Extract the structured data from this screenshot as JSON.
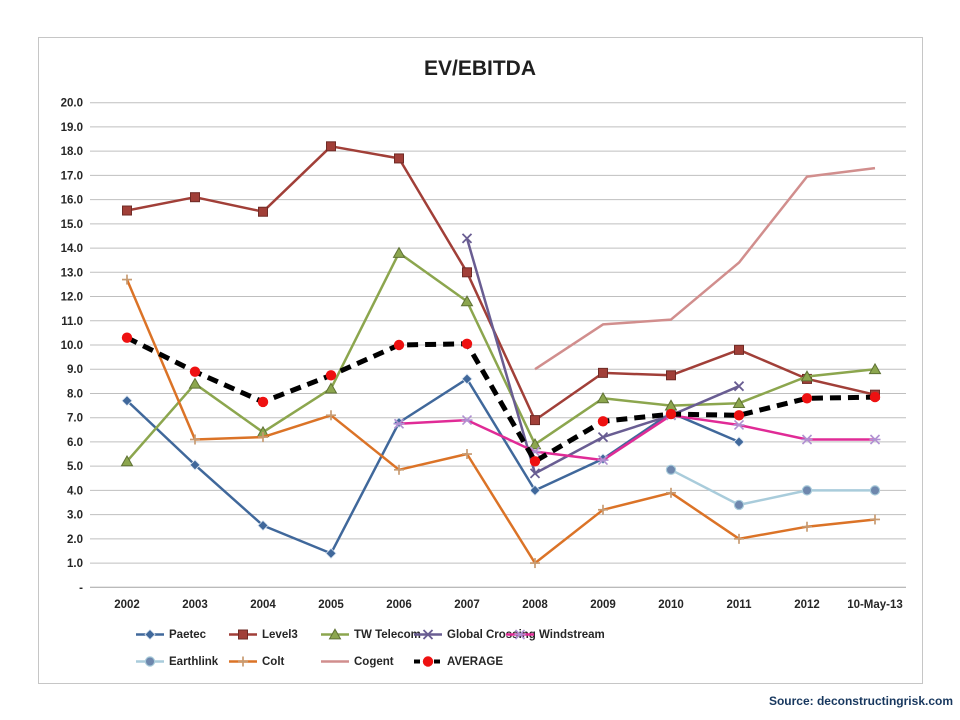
{
  "title": "EV/EBITDA",
  "source": "Source: deconstructingrisk.com",
  "chart_data": {
    "type": "line",
    "title": "EV/EBITDA",
    "xlabel": "",
    "ylabel": "",
    "ylim": [
      0,
      20
    ],
    "grid": true,
    "legend_position": "bottom",
    "categories": [
      "2002",
      "2003",
      "2004",
      "2005",
      "2006",
      "2007",
      "2008",
      "2009",
      "2010",
      "2011",
      "2012",
      "10-May-13"
    ],
    "ytick_labels": [
      "20.0",
      "19.0",
      "18.0",
      "17.0",
      "16.0",
      "15.0",
      "14.0",
      "13.0",
      "12.0",
      "11.0",
      "10.0",
      "9.0",
      "8.0",
      "7.0",
      "6.0",
      "5.0",
      "4.0",
      "3.0",
      "2.0",
      "1.0",
      "-"
    ],
    "series": [
      {
        "name": "Paetec",
        "color": "#40689B",
        "marker": "diamond",
        "marker_color": "#40689B",
        "values": [
          7.7,
          5.05,
          2.55,
          1.4,
          6.8,
          8.6,
          4.0,
          5.3,
          7.2,
          6.0,
          null,
          null
        ]
      },
      {
        "name": "Level3",
        "color": "#A13F38",
        "marker": "square",
        "marker_color": "#A13F38",
        "values": [
          15.55,
          16.1,
          15.5,
          18.2,
          17.7,
          13.0,
          6.9,
          8.85,
          8.75,
          9.8,
          8.6,
          7.95
        ]
      },
      {
        "name": "TW Telecom",
        "color": "#8CA64E",
        "marker": "triangle",
        "marker_color": "#8CA64E",
        "values": [
          5.2,
          8.4,
          6.4,
          8.2,
          13.8,
          11.8,
          5.9,
          7.8,
          7.5,
          7.6,
          8.7,
          9.0
        ]
      },
      {
        "name": "Global Crossing",
        "color": "#695D92",
        "marker": "x",
        "marker_color": "#695D92",
        "values": [
          null,
          null,
          null,
          null,
          null,
          14.4,
          4.7,
          6.2,
          7.1,
          8.3,
          null,
          null
        ]
      },
      {
        "name": "Windstream",
        "color": "#E02B96",
        "marker": "star",
        "marker_color": "#B091D2",
        "values": [
          null,
          null,
          null,
          null,
          6.75,
          6.9,
          5.6,
          5.25,
          7.1,
          6.7,
          6.1,
          6.1
        ]
      },
      {
        "name": "Earthlink",
        "color": "#A9CCDB",
        "marker": "circle",
        "marker_color": "#6E87AD",
        "values": [
          null,
          null,
          null,
          null,
          null,
          null,
          null,
          null,
          4.85,
          3.4,
          4.0,
          4.0
        ]
      },
      {
        "name": "Colt",
        "color": "#DB7327",
        "marker": "plus",
        "marker_color": "#C79B72",
        "values": [
          12.7,
          6.1,
          6.2,
          7.1,
          4.85,
          5.5,
          1.0,
          3.2,
          3.9,
          2.0,
          2.5,
          2.8
        ]
      },
      {
        "name": "Cogent",
        "color": "#D18E8D",
        "marker": "none",
        "marker_color": "#D18E8D",
        "values": [
          null,
          null,
          null,
          null,
          null,
          null,
          9.0,
          10.85,
          11.05,
          13.4,
          16.95,
          17.3
        ]
      },
      {
        "name": "AVERAGE",
        "color": "#000000",
        "marker": "dot",
        "marker_color": "#EE1111",
        "dashed": true,
        "line_width": 5,
        "values": [
          10.3,
          8.9,
          7.65,
          8.75,
          10.0,
          10.05,
          5.2,
          6.85,
          7.15,
          7.1,
          7.8,
          7.85
        ]
      }
    ]
  }
}
